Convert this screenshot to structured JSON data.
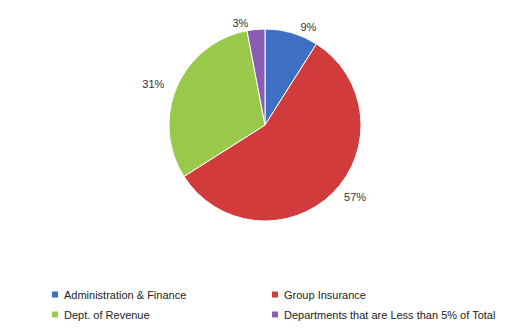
{
  "chart_data": {
    "type": "pie",
    "categories": [
      "Administration & Finance",
      "Group Insurance",
      "Dept. of Revenue",
      "Departments that are Less than 5% of Total"
    ],
    "values": [
      9,
      57,
      31,
      3
    ],
    "value_labels": [
      "9%",
      "57%",
      "31%",
      "3%"
    ],
    "colors": [
      "#3f6fc2",
      "#d23b3b",
      "#98c94a",
      "#8b5cb4"
    ],
    "legend": "bottom",
    "data_labels": true
  }
}
